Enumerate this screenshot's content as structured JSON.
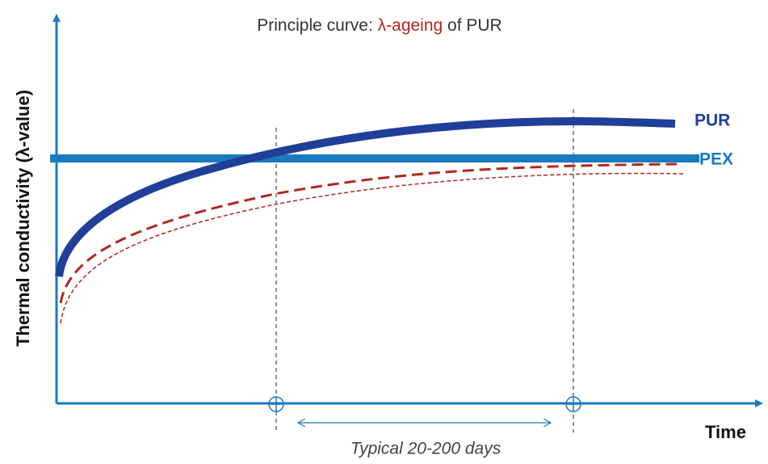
{
  "title": {
    "prefix": "Principle curve: ",
    "highlight": "λ-ageing",
    "suffix": " of PUR"
  },
  "y_axis_label": "Thermal conductivity (λ-value)",
  "x_axis_label": "Time",
  "curves": {
    "pur": "PUR",
    "pex": "PEX"
  },
  "annotation": "Typical 20-200 days"
}
